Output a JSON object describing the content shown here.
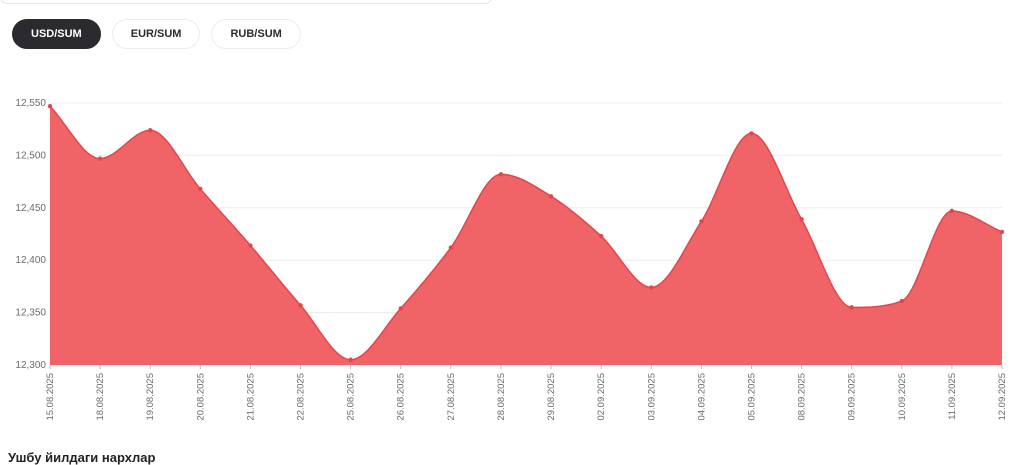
{
  "tabs": [
    {
      "label": "USD/SUM",
      "active": true
    },
    {
      "label": "EUR/SUM",
      "active": false
    },
    {
      "label": "RUB/SUM",
      "active": false
    }
  ],
  "footer_text": "Ушбу йилдаги нархлар",
  "chart_data": {
    "type": "area",
    "title": "",
    "xlabel": "",
    "ylabel": "",
    "ylim": [
      12300,
      12550
    ],
    "y_ticks": [
      "12,300",
      "12,350",
      "12,400",
      "12,450",
      "12,500",
      "12,550"
    ],
    "y_tick_values": [
      12300,
      12350,
      12400,
      12450,
      12500,
      12550
    ],
    "grid": true,
    "categories": [
      "15.08.2025",
      "18.08.2025",
      "19.08.2025",
      "20.08.2025",
      "21.08.2025",
      "22.08.2025",
      "25.08.2025",
      "26.08.2025",
      "27.08.2025",
      "28.08.2025",
      "29.08.2025",
      "02.09.2025",
      "03.09.2025",
      "04.09.2025",
      "05.09.2025",
      "08.09.2025",
      "09.09.2025",
      "10.09.2025",
      "11.09.2025",
      "12.09.2025"
    ],
    "series": [
      {
        "values": [
          12547,
          12497,
          12524,
          12468,
          12414,
          12357,
          12305,
          12354,
          12412,
          12482,
          12461,
          12423,
          12374,
          12437,
          12521,
          12439,
          12355,
          12361,
          12447,
          12427
        ],
        "color": "#f06468",
        "line_color": "#e0474c"
      }
    ]
  }
}
